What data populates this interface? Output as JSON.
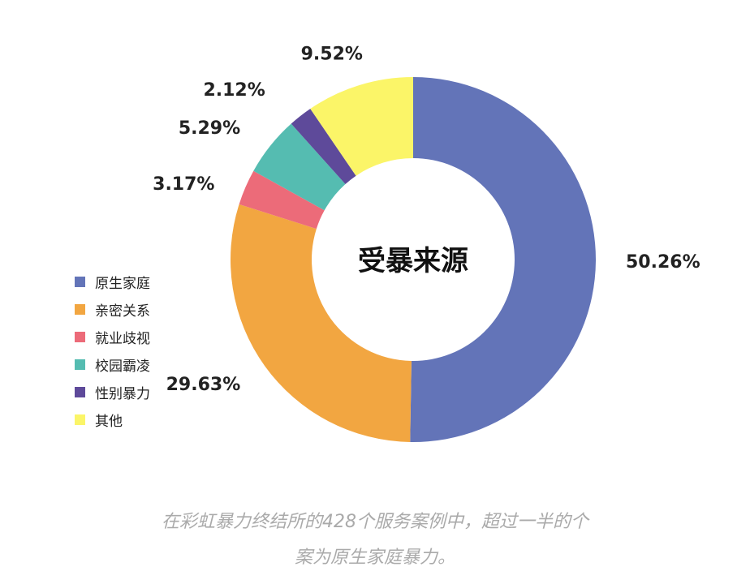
{
  "chart_data": {
    "type": "pie",
    "title": "受暴来源",
    "categories": [
      "原生家庭",
      "亲密关系",
      "就业歧视",
      "校园霸凌",
      "性别暴力",
      "其他"
    ],
    "values": [
      50.26,
      29.63,
      3.17,
      5.29,
      2.12,
      9.52
    ],
    "value_labels": [
      "50.26%",
      "29.63%",
      "3.17%",
      "5.29%",
      "2.12%",
      "9.52%"
    ],
    "colors": [
      "#6374b8",
      "#f2a641",
      "#ec6b79",
      "#55bcb1",
      "#5e4a9a",
      "#fbf568"
    ],
    "style": "donut",
    "legend": "left"
  },
  "caption": {
    "line1": "在彩虹暴力终结所的428个服务案例中，超过一半的个",
    "line2": "案为原生家庭暴力。"
  }
}
